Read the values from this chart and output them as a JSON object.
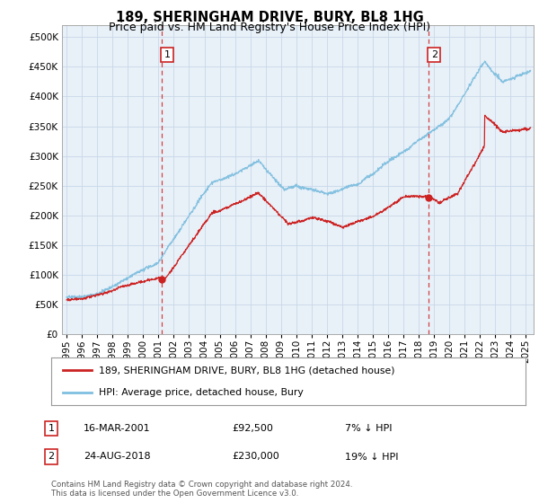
{
  "title": "189, SHERINGHAM DRIVE, BURY, BL8 1HG",
  "subtitle": "Price paid vs. HM Land Registry's House Price Index (HPI)",
  "ytick_values": [
    0,
    50000,
    100000,
    150000,
    200000,
    250000,
    300000,
    350000,
    400000,
    450000,
    500000
  ],
  "ylim": [
    0,
    520000
  ],
  "xlim_start": 1994.7,
  "xlim_end": 2025.5,
  "hpi_color": "#7fbfdf",
  "price_color": "#cc2222",
  "vline_color": "#cc2222",
  "chart_bg": "#e8f0f8",
  "transaction1_x": 2001.21,
  "transaction1_y": 92500,
  "transaction1_label": "1",
  "transaction2_x": 2018.65,
  "transaction2_y": 230000,
  "transaction2_label": "2",
  "legend_entries": [
    "189, SHERINGHAM DRIVE, BURY, BL8 1HG (detached house)",
    "HPI: Average price, detached house, Bury"
  ],
  "table_rows": [
    [
      "1",
      "16-MAR-2001",
      "£92,500",
      "7% ↓ HPI"
    ],
    [
      "2",
      "24-AUG-2018",
      "£230,000",
      "19% ↓ HPI"
    ]
  ],
  "footer": "Contains HM Land Registry data © Crown copyright and database right 2024.\nThis data is licensed under the Open Government Licence v3.0.",
  "bg_color": "#ffffff",
  "grid_color": "#c8d8e8",
  "title_fontsize": 10.5,
  "subtitle_fontsize": 9,
  "tick_fontsize": 7.5
}
